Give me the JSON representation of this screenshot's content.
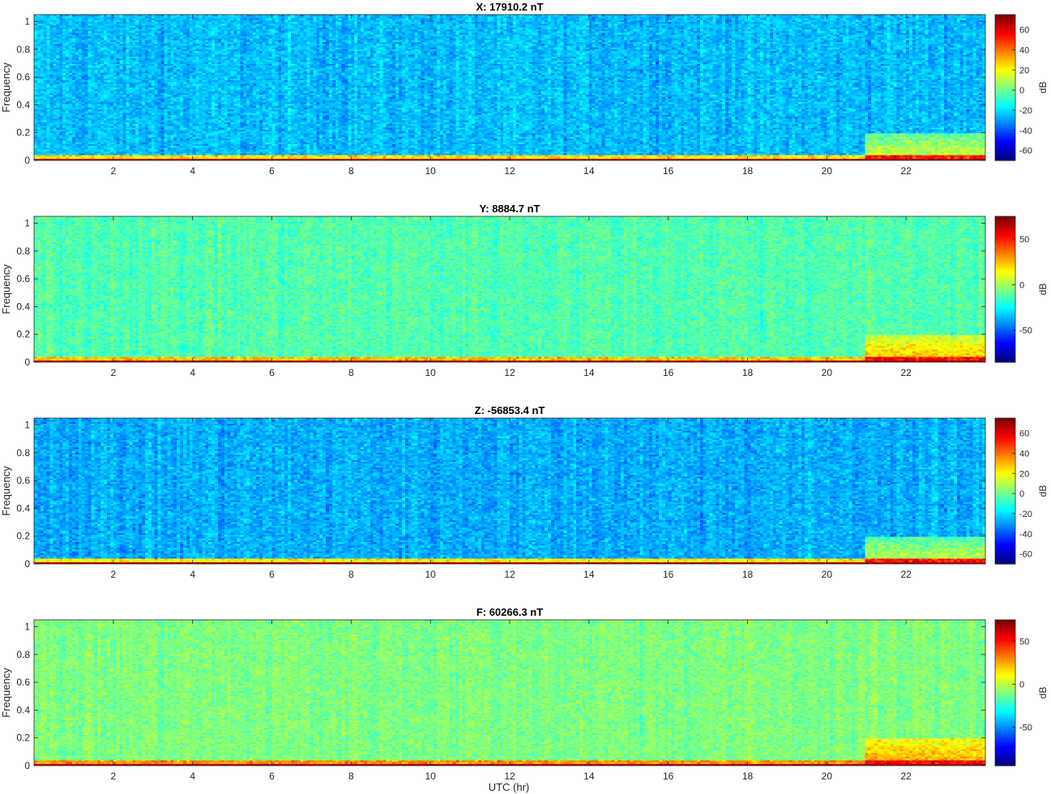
{
  "chart_data": [
    {
      "type": "heatmap",
      "title": "X: 17910.2 nT",
      "ylabel": "Frequency",
      "xlabel": "",
      "xlim": [
        0,
        24
      ],
      "ylim": [
        0,
        1.05
      ],
      "xticks": [
        "2",
        "4",
        "6",
        "8",
        "10",
        "12",
        "14",
        "16",
        "18",
        "20",
        "22"
      ],
      "yticks": [
        "0",
        "0.2",
        "0.4",
        "0.6",
        "0.8",
        "1"
      ],
      "colorbar": {
        "label": "dB",
        "range": [
          -70,
          75
        ],
        "ticks": [
          "60",
          "40",
          "20",
          "0",
          "-20",
          "-40",
          "-60"
        ]
      },
      "background_level_db": -25,
      "low_freq_band_db": 25,
      "burst_start_hr": 21.0,
      "burst_level_db": 18
    },
    {
      "type": "heatmap",
      "title": "Y: 8884.7 nT",
      "ylabel": "Frequency",
      "xlabel": "",
      "xlim": [
        0,
        24
      ],
      "ylim": [
        0,
        1.05
      ],
      "xticks": [
        "2",
        "4",
        "6",
        "8",
        "10",
        "12",
        "14",
        "16",
        "18",
        "20",
        "22"
      ],
      "yticks": [
        "0",
        "0.2",
        "0.4",
        "0.6",
        "0.8",
        "1"
      ],
      "colorbar": {
        "label": "dB",
        "range": [
          -85,
          75
        ],
        "ticks": [
          "50",
          "0",
          "-50"
        ]
      },
      "background_level_db": -12,
      "low_freq_band_db": 25,
      "burst_start_hr": 21.0,
      "burst_level_db": 25
    },
    {
      "type": "heatmap",
      "title": "Z: -56853.4 nT",
      "ylabel": "Frequency",
      "xlabel": "",
      "xlim": [
        0,
        24
      ],
      "ylim": [
        0,
        1.05
      ],
      "xticks": [
        "2",
        "4",
        "6",
        "8",
        "10",
        "12",
        "14",
        "16",
        "18",
        "20",
        "22"
      ],
      "yticks": [
        "0",
        "0.2",
        "0.4",
        "0.6",
        "0.8",
        "1"
      ],
      "colorbar": {
        "label": "dB",
        "range": [
          -70,
          75
        ],
        "ticks": [
          "60",
          "40",
          "20",
          "0",
          "-20",
          "-40",
          "-60"
        ]
      },
      "background_level_db": -27,
      "low_freq_band_db": 22,
      "burst_start_hr": 21.0,
      "burst_level_db": 15
    },
    {
      "type": "heatmap",
      "title": "F: 60266.3 nT",
      "ylabel": "Frequency",
      "xlabel": "UTC (hr)",
      "xlim": [
        0,
        24
      ],
      "ylim": [
        0,
        1.05
      ],
      "xticks": [
        "2",
        "4",
        "6",
        "8",
        "10",
        "12",
        "14",
        "16",
        "18",
        "20",
        "22"
      ],
      "yticks": [
        "0",
        "0.2",
        "0.4",
        "0.6",
        "0.8",
        "1"
      ],
      "colorbar": {
        "label": "dB",
        "range": [
          -95,
          75
        ],
        "ticks": [
          "50",
          "0",
          "-50"
        ]
      },
      "background_level_db": -10,
      "low_freq_band_db": 30,
      "burst_start_hr": 21.0,
      "burst_level_db": 28
    }
  ],
  "colormap": "jet"
}
